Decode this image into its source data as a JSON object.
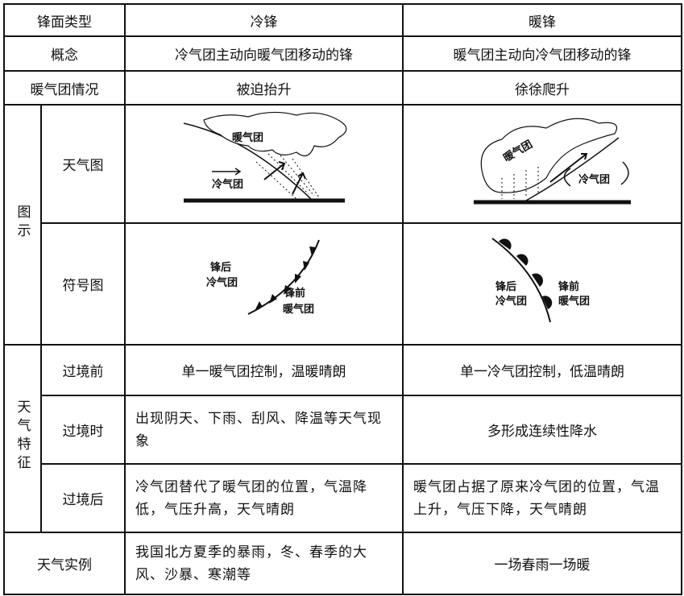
{
  "header": [
    "锋面类型",
    "冷锋",
    "暖锋"
  ],
  "simple_rows": [
    [
      "概念",
      "冷气团主动向暖气团移动的锋",
      "暖气团主动向冷气团移动的锋"
    ],
    [
      "暖气团情况",
      "被迫抬升",
      "徐徐爬升"
    ]
  ],
  "diagram_group": {
    "label": "图示",
    "weather_map": {
      "label": "天气图",
      "cold": [
        "暖气团",
        "冷气团"
      ],
      "warm": [
        "暖气团",
        "冷气团"
      ]
    },
    "symbol_map": {
      "label": "符号图",
      "cold": [
        "锋后",
        "冷气团",
        "锋前",
        "暖气团"
      ],
      "warm": [
        "锋后",
        "冷气团",
        "锋前",
        "暖气团"
      ]
    }
  },
  "weather_group": {
    "label": "天气特征",
    "rows": [
      [
        "过境前",
        "单一暖气团控制，温暖晴朗",
        "单一冷气团控制，低温晴朗"
      ],
      [
        "过境时",
        "出现阴天、下雨、刮风、降温等天气现象",
        "多形成连续性降水"
      ],
      [
        "过境后",
        "冷气团替代了暖气团的位置，气温降低，气压升高，天气晴朗",
        "暖气团占据了原来冷气团的位置，气温上升，气压下降，天气晴朗"
      ]
    ]
  },
  "example": [
    "天气实例",
    "我国北方夏季的暴雨，冬、春季的大风、沙暴、寒潮等",
    "一场春雨一场暖"
  ]
}
